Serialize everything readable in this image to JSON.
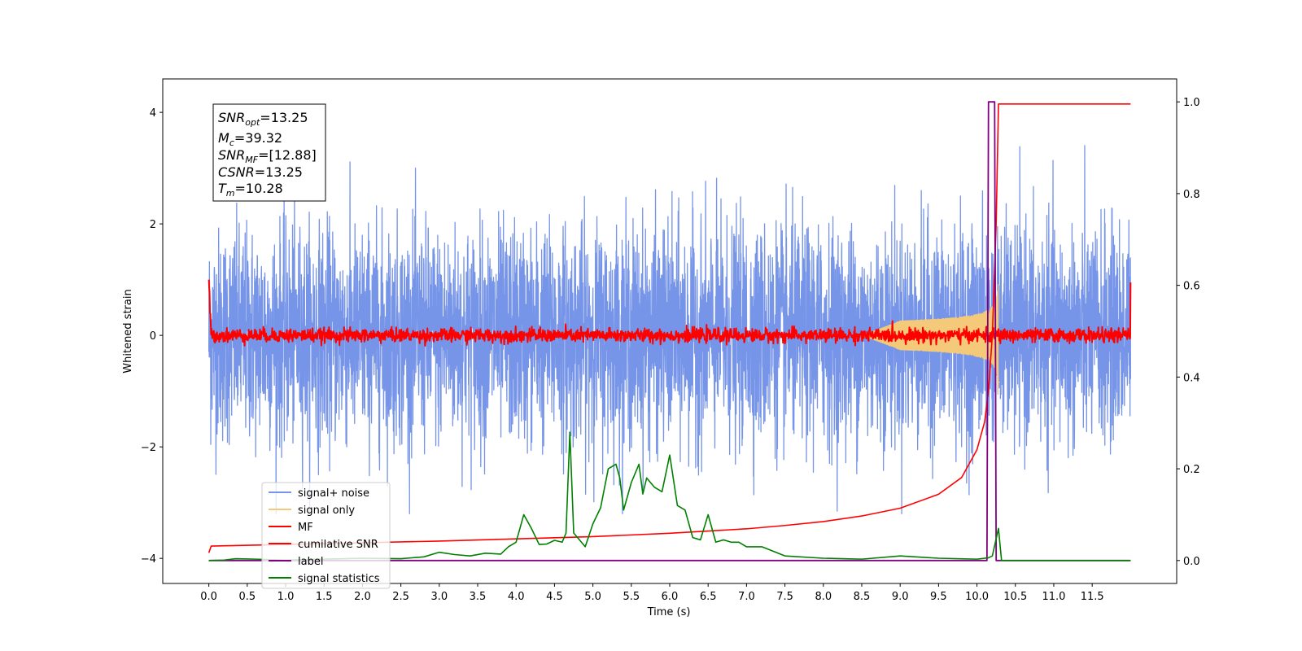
{
  "chart_data": {
    "type": "line",
    "xlabel": "Time (s)",
    "ylabel": "Whitened strain",
    "xlim": [
      -0.6,
      12.6
    ],
    "ylim_left": [
      -4.45,
      4.6
    ],
    "ylim_right": [
      -0.05,
      1.05
    ],
    "x_ticks": [
      "0.0",
      "0.5",
      "1.0",
      "1.5",
      "2.0",
      "2.5",
      "3.0",
      "3.5",
      "4.0",
      "4.5",
      "5.0",
      "5.5",
      "6.0",
      "6.5",
      "7.0",
      "7.5",
      "8.0",
      "8.5",
      "9.0",
      "9.5",
      "10.0",
      "10.5",
      "11.0",
      "11.5"
    ],
    "y_ticks_left": [
      "4",
      "2",
      "0",
      "−2",
      "−4"
    ],
    "y_ticks_right": [
      "1.0",
      "0.8",
      "0.6",
      "0.4",
      "0.2",
      "0.0"
    ],
    "annotation": {
      "lines": [
        {
          "name": "SNR",
          "sub": "opt",
          "value": "=13.25"
        },
        {
          "name": "M",
          "sub": "c",
          "value": "=39.32"
        },
        {
          "name": "SNR",
          "sub": "MF",
          "value": "=[12.88]"
        },
        {
          "name": "CSNR",
          "sub": "",
          "value": "=13.25"
        },
        {
          "name": "T",
          "sub": "m",
          "value": "=10.28"
        }
      ]
    },
    "legend": {
      "placement": "lower-left",
      "entries": [
        {
          "label": "signal+ noise",
          "color": "#7795e8"
        },
        {
          "label": "signal only",
          "color": "#f5c97a"
        },
        {
          "label": "MF",
          "color": "#ff0000"
        },
        {
          "label": "cumilative SNR",
          "color": "#ff0000"
        },
        {
          "label": "label",
          "color": "#800080"
        },
        {
          "label": "signal statistics",
          "color": "#008000"
        }
      ]
    },
    "series": [
      {
        "name": "signal+ noise",
        "axis": "left",
        "color": "#7795e8",
        "x_range": [
          0,
          12.0
        ],
        "noise_std": 0.95,
        "peak_max": 4.15,
        "peak_min": -3.2
      },
      {
        "name": "signal only",
        "axis": "left",
        "color": "#f5c97a",
        "chirp_end": 10.28,
        "peak_amplitude": 1.1
      },
      {
        "name": "MF",
        "axis": "left",
        "color": "#ff0000",
        "x_range": [
          0,
          12.0
        ],
        "noise_std": 0.06,
        "edge_values": [
          1.0,
          0.95
        ]
      },
      {
        "name": "cumilative SNR",
        "axis": "left",
        "color": "#ff0000",
        "x": [
          0.0,
          0.03,
          1,
          2,
          3,
          4,
          5,
          6,
          7,
          7.5,
          8,
          8.5,
          9,
          9.5,
          9.8,
          10.0,
          10.1,
          10.15,
          10.2,
          10.25,
          10.28,
          10.3,
          12.0
        ],
        "y": [
          -3.9,
          -3.78,
          -3.75,
          -3.72,
          -3.69,
          -3.65,
          -3.61,
          -3.55,
          -3.47,
          -3.41,
          -3.34,
          -3.24,
          -3.1,
          -2.85,
          -2.55,
          -2.05,
          -1.55,
          -1.0,
          0.0,
          2.0,
          4.15,
          4.15,
          4.15
        ]
      },
      {
        "name": "label",
        "axis": "right",
        "color": "#800080",
        "x": [
          0.0,
          10.13,
          10.15,
          10.2,
          10.23,
          10.25,
          12.0
        ],
        "y": [
          0.0,
          0.0,
          1.0,
          1.0,
          1.0,
          0.0,
          0.0
        ]
      },
      {
        "name": "signal statistics",
        "axis": "right",
        "color": "#008000",
        "x": [
          0.0,
          0.2,
          0.35,
          0.6,
          1.0,
          1.5,
          2.0,
          2.5,
          2.8,
          3.0,
          3.2,
          3.4,
          3.6,
          3.8,
          3.9,
          4.0,
          4.1,
          4.2,
          4.3,
          4.4,
          4.5,
          4.6,
          4.65,
          4.7,
          4.75,
          4.8,
          4.9,
          5.0,
          5.1,
          5.2,
          5.3,
          5.35,
          5.4,
          5.5,
          5.6,
          5.65,
          5.7,
          5.8,
          5.9,
          5.95,
          6.0,
          6.1,
          6.2,
          6.3,
          6.4,
          6.5,
          6.6,
          6.7,
          6.8,
          6.9,
          7.0,
          7.2,
          7.5,
          8.0,
          8.5,
          9.0,
          9.5,
          10.0,
          10.15,
          10.2,
          10.28,
          10.32,
          12.0
        ],
        "y": [
          0.0,
          0.001,
          0.004,
          0.003,
          0.001,
          0.003,
          0.005,
          0.004,
          0.008,
          0.018,
          0.013,
          0.01,
          0.016,
          0.014,
          0.03,
          0.04,
          0.1,
          0.07,
          0.035,
          0.036,
          0.044,
          0.04,
          0.06,
          0.28,
          0.06,
          0.05,
          0.03,
          0.08,
          0.115,
          0.2,
          0.21,
          0.18,
          0.11,
          0.17,
          0.21,
          0.145,
          0.18,
          0.16,
          0.15,
          0.19,
          0.23,
          0.12,
          0.11,
          0.05,
          0.045,
          0.1,
          0.04,
          0.045,
          0.04,
          0.04,
          0.03,
          0.03,
          0.01,
          0.005,
          0.003,
          0.01,
          0.005,
          0.003,
          0.006,
          0.01,
          0.07,
          0.0,
          0.0
        ]
      }
    ]
  }
}
